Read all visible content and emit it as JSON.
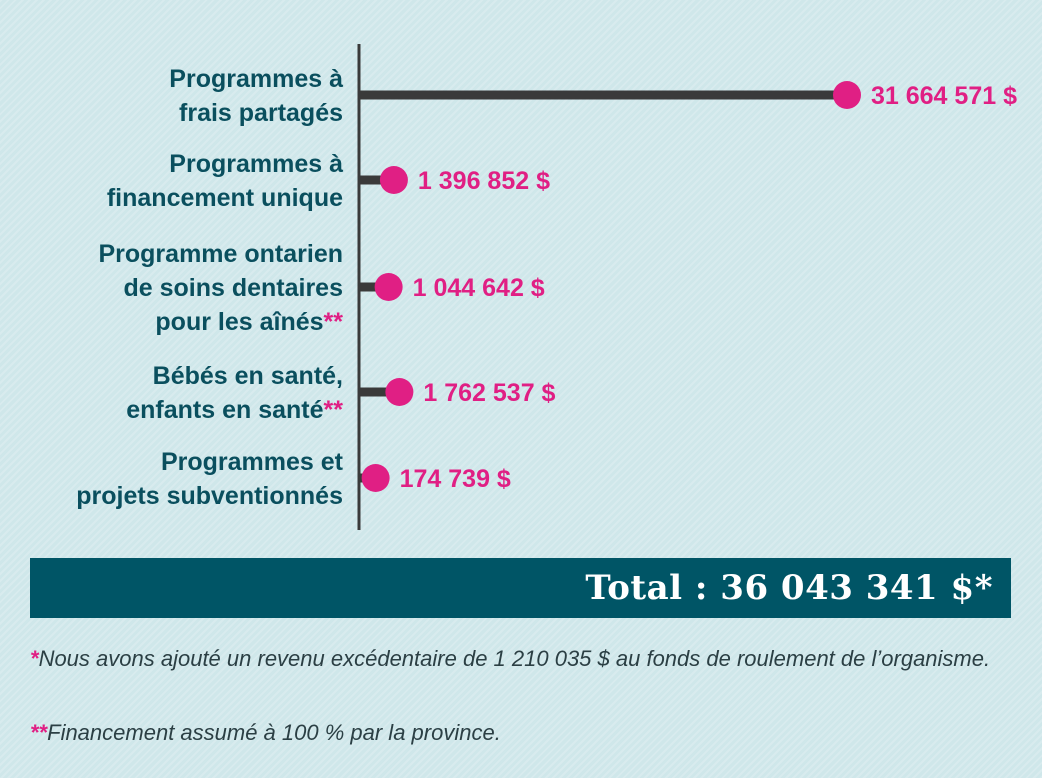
{
  "chart_data": {
    "type": "bar",
    "categories": [
      [
        "Programmes à",
        "frais partagés"
      ],
      [
        "Programmes à",
        "financement unique"
      ],
      [
        "Programme ontarien",
        "de soins dentaires",
        "pour les aînés"
      ],
      [
        "Bébés en santé,",
        "enfants en santé"
      ],
      [
        "Programmes et",
        "projets subventionnés"
      ]
    ],
    "category_marks": [
      "",
      "",
      "**",
      "**",
      ""
    ],
    "values": [
      31664571,
      1396852,
      1044642,
      1762537,
      174739
    ],
    "value_labels": [
      "31 664 571 $",
      "1 396 852 $",
      "1 044 642 $",
      "1 762 537 $",
      "174 739 $"
    ],
    "orientation": "horizontal",
    "marker": "lollipop",
    "xlim": [
      0,
      31664571
    ],
    "grid": false,
    "legend": "none",
    "colors": {
      "bar": "#3a3a3a",
      "dot": "#e01f84",
      "label": "#0a4f5e",
      "value": "#e01f84",
      "axis": "#3a3a3a"
    }
  },
  "total": {
    "text": "Total : 36 043 341 $*",
    "background": "#005566"
  },
  "footnotes": [
    {
      "mark": "*",
      "text": "Nous avons ajouté un revenu excédentaire de 1 210 035 $ au fonds de roulement de l’organisme."
    },
    {
      "mark": "**",
      "text": "Financement assumé à 100 % par la province."
    }
  ]
}
